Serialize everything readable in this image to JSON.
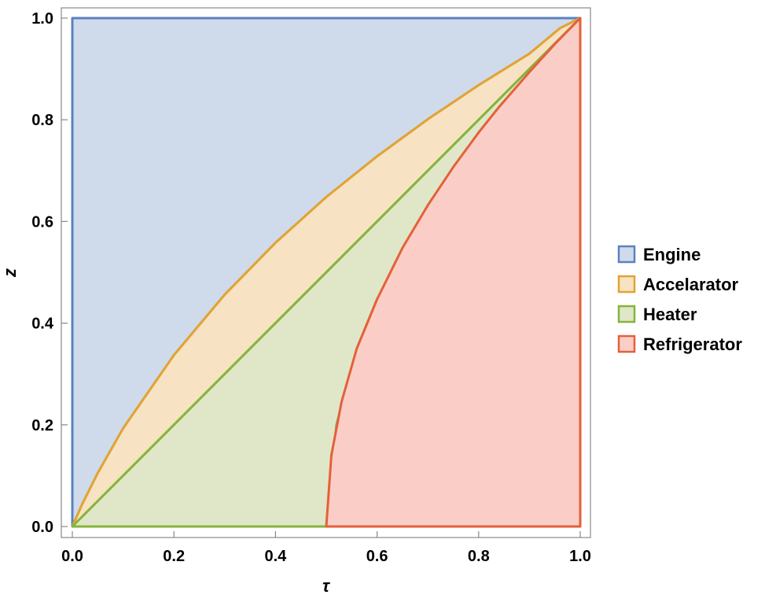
{
  "chart_data": {
    "type": "area",
    "title": "",
    "xlabel": "τ",
    "ylabel": "z",
    "xlim": [
      0,
      1
    ],
    "ylim": [
      0,
      1
    ],
    "x_ticks": [
      "0.0",
      "0.2",
      "0.4",
      "0.6",
      "0.8",
      "1.0"
    ],
    "y_ticks": [
      "0.0",
      "0.2",
      "0.4",
      "0.6",
      "0.8",
      "1.0"
    ],
    "legend_position": "right",
    "series": [
      {
        "name": "Engine",
        "stroke": "#5b82c0",
        "fill": "#cfdbea",
        "boundary": [
          [
            0,
            0
          ],
          [
            0,
            1
          ],
          [
            1,
            1
          ],
          [
            0.96,
            0.98
          ],
          [
            0.9,
            0.93
          ],
          [
            0.8,
            0.868
          ],
          [
            0.7,
            0.801
          ],
          [
            0.6,
            0.728
          ],
          [
            0.5,
            0.648
          ],
          [
            0.4,
            0.558
          ],
          [
            0.3,
            0.456
          ],
          [
            0.2,
            0.337
          ],
          [
            0.1,
            0.193
          ],
          [
            0.05,
            0.105
          ],
          [
            0.02,
            0.045
          ],
          [
            0,
            0
          ]
        ]
      },
      {
        "name": "Accelarator",
        "stroke": "#e4a32f",
        "fill": "#f7e2c4",
        "boundary": [
          [
            0,
            0
          ],
          [
            0.02,
            0.045
          ],
          [
            0.05,
            0.105
          ],
          [
            0.1,
            0.193
          ],
          [
            0.2,
            0.337
          ],
          [
            0.3,
            0.456
          ],
          [
            0.4,
            0.558
          ],
          [
            0.5,
            0.648
          ],
          [
            0.6,
            0.728
          ],
          [
            0.7,
            0.801
          ],
          [
            0.8,
            0.868
          ],
          [
            0.9,
            0.93
          ],
          [
            0.96,
            0.98
          ],
          [
            1,
            1
          ],
          [
            0.8,
            0.8
          ],
          [
            0.6,
            0.6
          ],
          [
            0.4,
            0.4
          ],
          [
            0.2,
            0.2
          ],
          [
            0,
            0
          ]
        ]
      },
      {
        "name": "Heater",
        "stroke": "#86b43a",
        "fill": "#dfe7c8",
        "boundary": [
          [
            0,
            0
          ],
          [
            0.5,
            0
          ],
          [
            0.52,
            0.2
          ],
          [
            0.56,
            0.35
          ],
          [
            0.6,
            0.447
          ],
          [
            0.7,
            0.632
          ],
          [
            0.8,
            0.775
          ],
          [
            0.84,
            0.825
          ],
          [
            1,
            1
          ],
          [
            0.8,
            0.8
          ],
          [
            0.6,
            0.6
          ],
          [
            0.4,
            0.4
          ],
          [
            0.2,
            0.2
          ],
          [
            0,
            0
          ]
        ]
      },
      {
        "name": "Refrigerator",
        "stroke": "#e4603a",
        "fill": "#facec6",
        "boundary": [
          [
            0.5,
            0
          ],
          [
            1,
            0
          ],
          [
            1,
            1
          ],
          [
            0.95,
            0.949
          ],
          [
            0.9,
            0.894
          ],
          [
            0.84,
            0.825
          ],
          [
            0.8,
            0.775
          ],
          [
            0.75,
            0.707
          ],
          [
            0.7,
            0.632
          ],
          [
            0.65,
            0.548
          ],
          [
            0.6,
            0.447
          ],
          [
            0.56,
            0.35
          ],
          [
            0.53,
            0.245
          ],
          [
            0.51,
            0.14
          ],
          [
            0.5,
            0
          ]
        ]
      }
    ]
  }
}
